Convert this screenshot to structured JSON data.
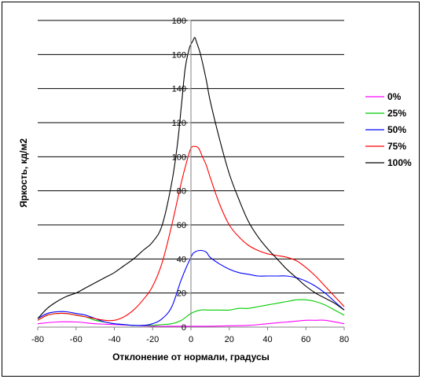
{
  "chart_data": {
    "type": "line",
    "xlabel": "Отклонение от нормали, градусы",
    "ylabel": "Яркость, кд/м2",
    "xlim": [
      -80,
      80
    ],
    "ylim": [
      0,
      180
    ],
    "x_ticks": [
      -80,
      -60,
      -40,
      -20,
      0,
      20,
      40,
      60,
      80
    ],
    "y_ticks": [
      0,
      20,
      40,
      60,
      80,
      100,
      120,
      140,
      160,
      180
    ],
    "grid": "horizontal",
    "legend_position": "right",
    "series": [
      {
        "name": "0%",
        "color": "#ff00ff",
        "x": [
          -80,
          -70,
          -60,
          -50,
          -40,
          -30,
          -20,
          -10,
          0,
          10,
          20,
          30,
          40,
          50,
          60,
          65,
          70,
          80
        ],
        "y": [
          2,
          3,
          3,
          2,
          1.5,
          1,
          0.5,
          0.5,
          0.5,
          0.5,
          0.8,
          1,
          2,
          3,
          4,
          4,
          4,
          2
        ]
      },
      {
        "name": "25%",
        "color": "#00cc00",
        "x": [
          -80,
          -75,
          -70,
          -65,
          -60,
          -55,
          -50,
          -45,
          -40,
          -35,
          -30,
          -25,
          -20,
          -15,
          -10,
          -5,
          0,
          5,
          10,
          15,
          20,
          25,
          30,
          35,
          40,
          45,
          50,
          55,
          60,
          65,
          70,
          75,
          80
        ],
        "y": [
          4,
          7,
          8,
          8,
          7,
          6,
          4,
          3,
          2,
          1.5,
          1,
          1,
          1,
          1.5,
          2,
          4,
          8,
          10,
          10,
          10,
          10,
          11,
          11,
          12,
          13,
          14,
          15,
          16,
          16,
          15,
          13,
          10,
          7
        ]
      },
      {
        "name": "50%",
        "color": "#0000ff",
        "x": [
          -80,
          -75,
          -70,
          -65,
          -60,
          -55,
          -50,
          -45,
          -40,
          -35,
          -30,
          -25,
          -20,
          -15,
          -10,
          -5,
          0,
          2,
          5,
          8,
          10,
          15,
          20,
          25,
          30,
          35,
          40,
          45,
          50,
          55,
          60,
          65,
          70,
          75,
          80
        ],
        "y": [
          5,
          8,
          9,
          9,
          8,
          7,
          5,
          3,
          2,
          1.5,
          1,
          1,
          2,
          5,
          12,
          28,
          41,
          44,
          45,
          44,
          41,
          37,
          34,
          32,
          31,
          30,
          30,
          30,
          30,
          29,
          27,
          24,
          20,
          15,
          10
        ]
      },
      {
        "name": "75%",
        "color": "#ff0000",
        "x": [
          -80,
          -75,
          -70,
          -65,
          -60,
          -55,
          -50,
          -45,
          -40,
          -35,
          -30,
          -25,
          -20,
          -15,
          -10,
          -5,
          -2,
          0,
          2,
          4,
          6,
          8,
          10,
          15,
          20,
          25,
          30,
          35,
          40,
          45,
          50,
          55,
          60,
          65,
          70,
          75,
          80
        ],
        "y": [
          4,
          7,
          8,
          8,
          7,
          6,
          5,
          4,
          4,
          6,
          10,
          16,
          24,
          38,
          60,
          85,
          98,
          105,
          106,
          105,
          100,
          95,
          88,
          72,
          60,
          53,
          48,
          45,
          43,
          42,
          41,
          39,
          35,
          30,
          24,
          18,
          12
        ]
      },
      {
        "name": "100%",
        "color": "#000000",
        "x": [
          -80,
          -75,
          -70,
          -65,
          -60,
          -55,
          -50,
          -45,
          -40,
          -35,
          -30,
          -25,
          -20,
          -15,
          -10,
          -7,
          -5,
          -3,
          -1,
          0,
          1,
          2,
          3,
          5,
          8,
          10,
          15,
          20,
          25,
          30,
          35,
          40,
          45,
          50,
          55,
          60,
          65,
          70,
          75,
          80
        ],
        "y": [
          5,
          11,
          15,
          18,
          20,
          23,
          26,
          29,
          32,
          36,
          40,
          45,
          50,
          60,
          85,
          108,
          130,
          152,
          163,
          166,
          168,
          170,
          167,
          160,
          145,
          133,
          110,
          90,
          75,
          62,
          53,
          46,
          40,
          34,
          29,
          24,
          20,
          17,
          14,
          10
        ]
      }
    ]
  }
}
